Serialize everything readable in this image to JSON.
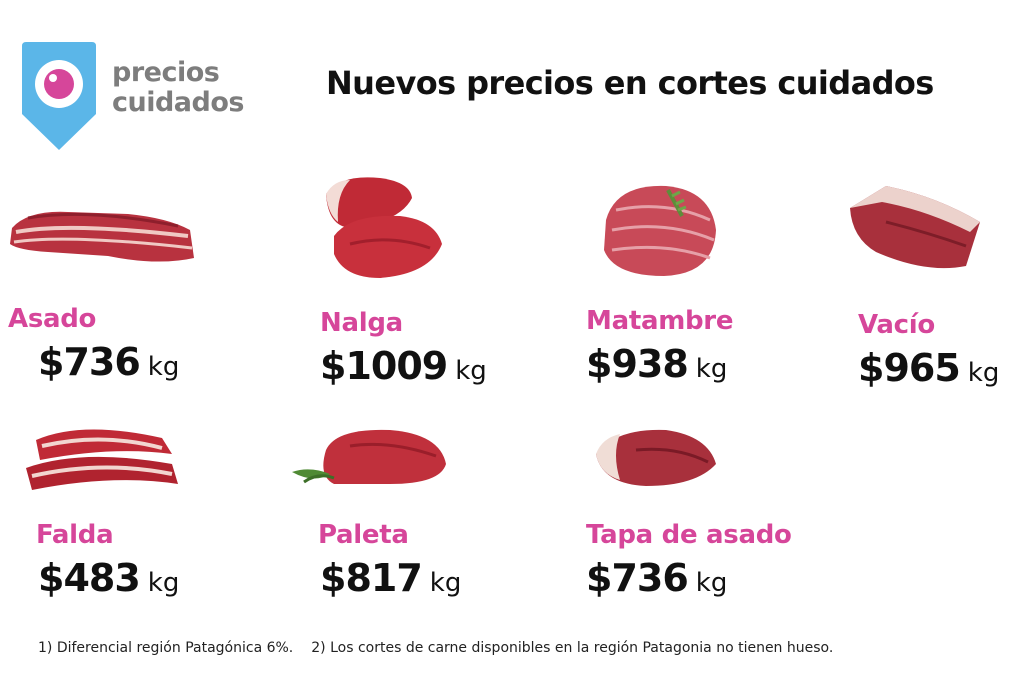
{
  "brand": {
    "line1": "precios",
    "line2": "cuidados",
    "accent": "#5bb6e8",
    "pink": "#d6469a"
  },
  "title": "Nuevos precios en cortes cuidados",
  "cuts": [
    {
      "name": "Asado",
      "price": "$736",
      "unit": "kg",
      "icon": "asado-meat-image"
    },
    {
      "name": "Nalga",
      "price": "$1009",
      "unit": "kg",
      "icon": "nalga-meat-image"
    },
    {
      "name": "Matambre",
      "price": "$938",
      "unit": "kg",
      "icon": "matambre-meat-image"
    },
    {
      "name": "Vacío",
      "price": "$965",
      "unit": "kg",
      "icon": "vacio-meat-image"
    },
    {
      "name": "Falda",
      "price": "$483",
      "unit": "kg",
      "icon": "falda-meat-image"
    },
    {
      "name": "Paleta",
      "price": "$817",
      "unit": "kg",
      "icon": "paleta-meat-image"
    },
    {
      "name": "Tapa de asado",
      "price": "$736",
      "unit": "kg",
      "icon": "tapa-de-asado-meat-image"
    }
  ],
  "footnotes": [
    "1) Diferencial región Patagónica 6%.",
    "2) Los cortes de carne disponibles en la región Patagonia no tienen hueso."
  ]
}
